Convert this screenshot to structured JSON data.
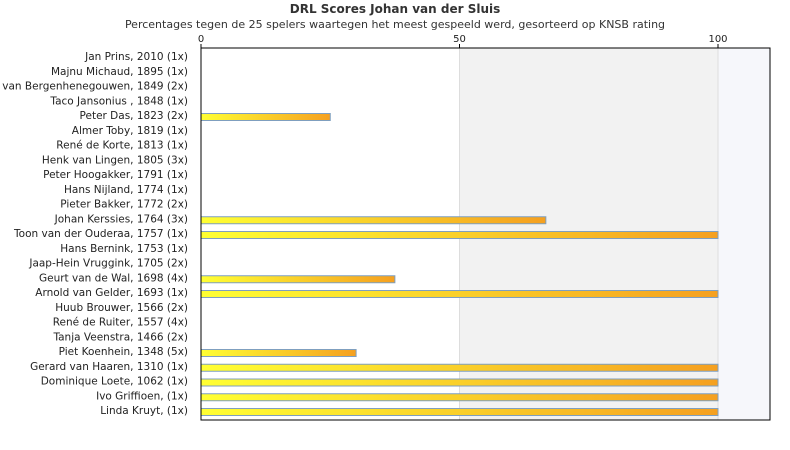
{
  "chart_data": {
    "type": "bar",
    "orientation": "horizontal",
    "title": "DRL Scores Johan van der Sluis",
    "subtitle": "Percentages tegen de 25 spelers waartegen het meest gespeeld werd, gesorteerd op KNSB rating",
    "xlim": [
      0,
      110
    ],
    "xticks": [
      0,
      50,
      100
    ],
    "categories": [
      "Jan Prins, 2010 (1x)",
      "Majnu Michaud, 1895 (1x)",
      "van Bergenhenegouwen, 1849 (2x)",
      "Taco Jansonius , 1848 (1x)",
      "Peter Das, 1823 (2x)",
      "Almer Toby, 1819 (1x)",
      "René de Korte, 1813 (1x)",
      "Henk van Lingen, 1805 (3x)",
      "Peter Hoogakker, 1791 (1x)",
      "Hans Nijland, 1774 (1x)",
      "Pieter Bakker, 1772 (2x)",
      "Johan Kerssies, 1764 (3x)",
      "Toon van der Ouderaa, 1757 (1x)",
      "Hans Bernink, 1753 (1x)",
      "Jaap-Hein Vruggink, 1705 (2x)",
      "Geurt van de Wal, 1698 (4x)",
      "Arnold van Gelder, 1693 (1x)",
      "Huub Brouwer, 1566 (2x)",
      "René de Ruiter, 1557 (4x)",
      "Tanja Veenstra, 1466 (2x)",
      "Piet Koenhein, 1348 (5x)",
      "Gerard van Haaren, 1310 (1x)",
      "Dominique Loete, 1062 (1x)",
      "Ivo Griffioen,  (1x)",
      "Linda Kruyt,  (1x)"
    ],
    "values": [
      0,
      0,
      0,
      0,
      25,
      0,
      0,
      0,
      0,
      0,
      0,
      66.7,
      100,
      0,
      0,
      37.5,
      100,
      0,
      0,
      0,
      30,
      100,
      100,
      100,
      100
    ],
    "grid": false,
    "colors": {
      "bar_start": "#ffff33",
      "bar_end": "#f5a020",
      "bar_border": "#7f9fbf",
      "band_50_100": "#f2f2f2",
      "band_100_plus": "#f6f7fb",
      "axis": "#000000"
    }
  }
}
